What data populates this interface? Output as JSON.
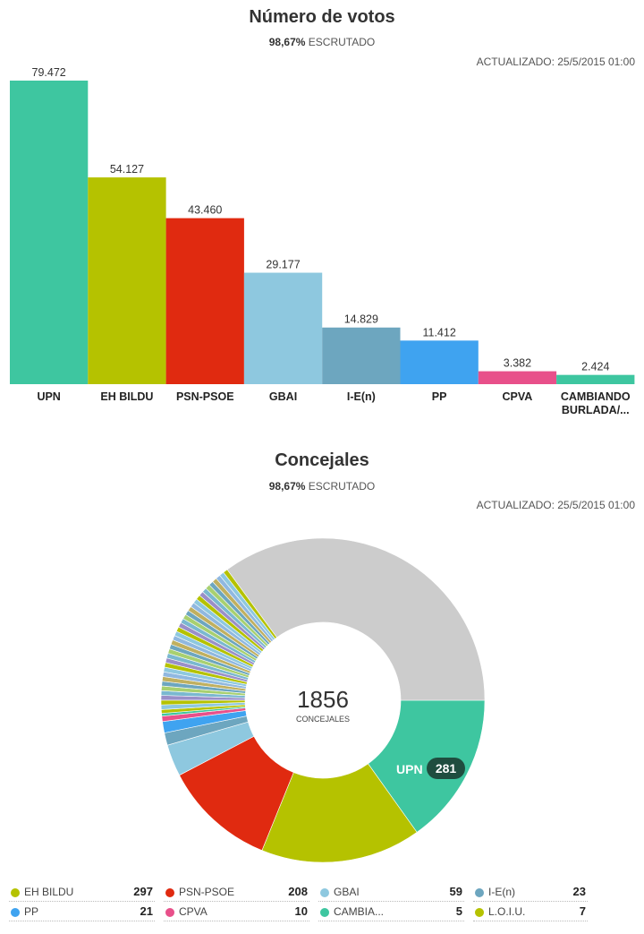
{
  "votes": {
    "title": "Número de votos",
    "scrutiny_value": "98,67%",
    "scrutiny_label": "ESCRUTADO",
    "updated": "ACTUALIZADO: 25/5/2015 01:00"
  },
  "seats": {
    "title": "Concejales",
    "scrutiny_value": "98,67%",
    "scrutiny_label": "ESCRUTADO",
    "updated": "ACTUALIZADO: 25/5/2015 01:00",
    "center_value": "1856",
    "center_label": "CONCEJALES",
    "highlight_name": "UPN",
    "highlight_value": "281"
  },
  "chart_data": [
    {
      "type": "bar",
      "title": "Número de votos",
      "categories": [
        "UPN",
        "EH BILDU",
        "PSN-PSOE",
        "GBAI",
        "I-E(n)",
        "PP",
        "CPVA",
        "CAMBIANDO BURLADA/..."
      ],
      "category_lines": [
        [
          "UPN"
        ],
        [
          "EH BILDU"
        ],
        [
          "PSN-PSOE"
        ],
        [
          "GBAI"
        ],
        [
          "I-E(n)"
        ],
        [
          "PP"
        ],
        [
          "CPVA"
        ],
        [
          "CAMBIANDO",
          "BURLADA/..."
        ]
      ],
      "values": [
        79472,
        54127,
        43460,
        29177,
        14829,
        11412,
        3382,
        2424
      ],
      "value_labels": [
        "79.472",
        "54.127",
        "43.460",
        "29.177",
        "14.829",
        "11.412",
        "3.382",
        "2.424"
      ],
      "colors": [
        "#3ec6a0",
        "#b5c200",
        "#e02a10",
        "#8ec8df",
        "#6da6bf",
        "#3fa3f0",
        "#e8508a",
        "#3ec6a0"
      ],
      "ylim": [
        0,
        79472
      ]
    },
    {
      "type": "pie",
      "title": "Concejales",
      "total": 1856,
      "slices": [
        {
          "name": "UPN",
          "value": 281,
          "color": "#3ec6a0"
        },
        {
          "name": "EH BILDU",
          "value": 297,
          "color": "#b5c200"
        },
        {
          "name": "PSN-PSOE",
          "value": 208,
          "color": "#e02a10"
        },
        {
          "name": "GBAI",
          "value": 59,
          "color": "#8ec8df"
        },
        {
          "name": "I-E(n)",
          "value": 23,
          "color": "#6da6bf"
        },
        {
          "name": "PP",
          "value": 21,
          "color": "#3fa3f0"
        },
        {
          "name": "CPVA",
          "value": 10,
          "color": "#e8508a"
        },
        {
          "name": "CAMBIA...",
          "value": 5,
          "color": "#3ec6a0"
        },
        {
          "name": "L.O.I.U.",
          "value": 7,
          "color": "#b5c200"
        }
      ],
      "others_colors": [
        "#8ec8df",
        "#b5c200",
        "#9a8fc8",
        "#7ab8d0",
        "#a8d070",
        "#6da6bf",
        "#c0b060",
        "#90b8e0"
      ],
      "others_color": "#cccccc"
    }
  ],
  "legend": [
    [
      {
        "name": "EH BILDU",
        "value": "297",
        "color": "#b5c200"
      },
      {
        "name": "PSN-PSOE",
        "value": "208",
        "color": "#e02a10"
      },
      {
        "name": "GBAI",
        "value": "59",
        "color": "#8ec8df"
      },
      {
        "name": "I-E(n)",
        "value": "23",
        "color": "#6da6bf"
      }
    ],
    [
      {
        "name": "PP",
        "value": "21",
        "color": "#3fa3f0"
      },
      {
        "name": "CPVA",
        "value": "10",
        "color": "#e8508a"
      },
      {
        "name": "CAMBIA...",
        "value": "5",
        "color": "#3ec6a0"
      },
      {
        "name": "L.O.I.U.",
        "value": "7",
        "color": "#b5c200"
      }
    ]
  ]
}
